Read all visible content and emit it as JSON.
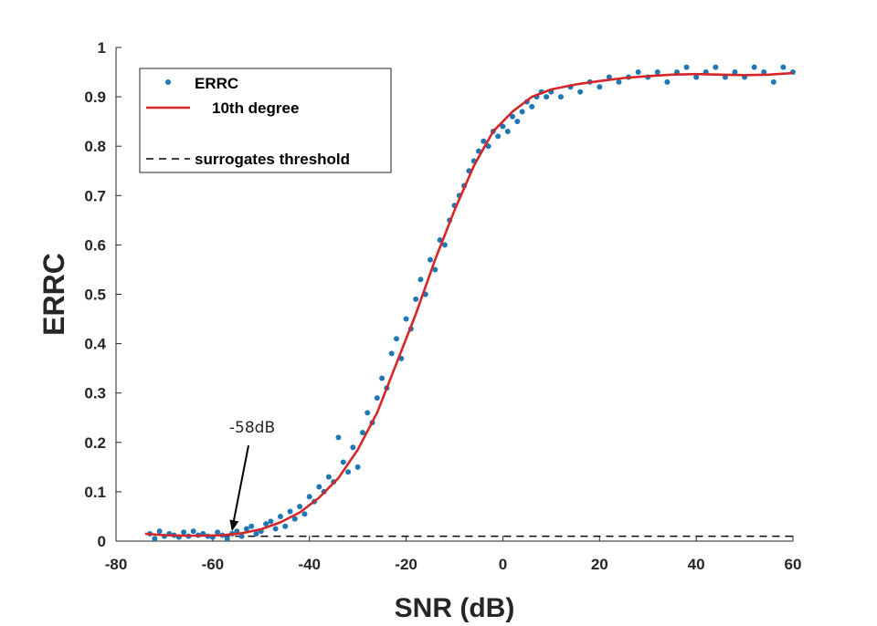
{
  "chart_data": {
    "type": "scatter",
    "title": "",
    "xlabel": "SNR (dB)",
    "ylabel": "ERRC",
    "xlim": [
      -80,
      60
    ],
    "ylim": [
      0,
      1
    ],
    "x_ticks": [
      -80,
      -60,
      -40,
      -20,
      0,
      20,
      40,
      60
    ],
    "y_ticks": [
      0,
      0.1,
      0.2,
      0.3,
      0.4,
      0.5,
      0.6,
      0.7,
      0.8,
      0.9,
      1
    ],
    "x_tick_labels": [
      "-80",
      "-60",
      "-40",
      "-20",
      "0",
      "20",
      "40",
      "60"
    ],
    "y_tick_labels": [
      "0",
      "0.1",
      "0.2",
      "0.3",
      "0.4",
      "0.5",
      "0.6",
      "0.7",
      "0.8",
      "0.9",
      "1"
    ],
    "grid": false,
    "legend_position": "top-left",
    "series": [
      {
        "name": "ERRC",
        "kind": "scatter",
        "color": "#1f77b4",
        "points": [
          [
            -73,
            0.015
          ],
          [
            -72,
            0.005
          ],
          [
            -71,
            0.02
          ],
          [
            -70,
            0.01
          ],
          [
            -69,
            0.015
          ],
          [
            -68,
            0.012
          ],
          [
            -67,
            0.008
          ],
          [
            -66,
            0.018
          ],
          [
            -65,
            0.01
          ],
          [
            -64,
            0.02
          ],
          [
            -63,
            0.012
          ],
          [
            -62,
            0.015
          ],
          [
            -61,
            0.01
          ],
          [
            -60,
            0.008
          ],
          [
            -59,
            0.018
          ],
          [
            -58,
            0.012
          ],
          [
            -57,
            0.005
          ],
          [
            -56,
            0.015
          ],
          [
            -55,
            0.02
          ],
          [
            -54,
            0.01
          ],
          [
            -53,
            0.025
          ],
          [
            -52,
            0.03
          ],
          [
            -51,
            0.015
          ],
          [
            -50,
            0.02
          ],
          [
            -49,
            0.035
          ],
          [
            -48,
            0.04
          ],
          [
            -47,
            0.025
          ],
          [
            -46,
            0.05
          ],
          [
            -45,
            0.03
          ],
          [
            -44,
            0.06
          ],
          [
            -43,
            0.045
          ],
          [
            -42,
            0.07
          ],
          [
            -41,
            0.055
          ],
          [
            -40,
            0.09
          ],
          [
            -39,
            0.08
          ],
          [
            -38,
            0.11
          ],
          [
            -37,
            0.1
          ],
          [
            -36,
            0.13
          ],
          [
            -35,
            0.12
          ],
          [
            -34,
            0.21
          ],
          [
            -33,
            0.16
          ],
          [
            -32,
            0.14
          ],
          [
            -31,
            0.19
          ],
          [
            -30,
            0.15
          ],
          [
            -29,
            0.22
          ],
          [
            -28,
            0.26
          ],
          [
            -27,
            0.24
          ],
          [
            -26,
            0.29
          ],
          [
            -25,
            0.33
          ],
          [
            -24,
            0.31
          ],
          [
            -23,
            0.38
          ],
          [
            -22,
            0.41
          ],
          [
            -21,
            0.37
          ],
          [
            -20,
            0.45
          ],
          [
            -19,
            0.43
          ],
          [
            -18,
            0.49
          ],
          [
            -17,
            0.53
          ],
          [
            -16,
            0.5
          ],
          [
            -15,
            0.57
          ],
          [
            -14,
            0.55
          ],
          [
            -13,
            0.61
          ],
          [
            -12,
            0.6
          ],
          [
            -11,
            0.65
          ],
          [
            -10,
            0.68
          ],
          [
            -9,
            0.7
          ],
          [
            -8,
            0.72
          ],
          [
            -7,
            0.75
          ],
          [
            -6,
            0.77
          ],
          [
            -5,
            0.79
          ],
          [
            -4,
            0.81
          ],
          [
            -3,
            0.8
          ],
          [
            -2,
            0.83
          ],
          [
            -1,
            0.82
          ],
          [
            0,
            0.84
          ],
          [
            1,
            0.83
          ],
          [
            2,
            0.86
          ],
          [
            3,
            0.85
          ],
          [
            4,
            0.87
          ],
          [
            5,
            0.89
          ],
          [
            6,
            0.88
          ],
          [
            7,
            0.9
          ],
          [
            8,
            0.91
          ],
          [
            9,
            0.9
          ],
          [
            10,
            0.91
          ],
          [
            12,
            0.9
          ],
          [
            14,
            0.92
          ],
          [
            16,
            0.91
          ],
          [
            18,
            0.93
          ],
          [
            20,
            0.92
          ],
          [
            22,
            0.94
          ],
          [
            24,
            0.93
          ],
          [
            26,
            0.94
          ],
          [
            28,
            0.95
          ],
          [
            30,
            0.94
          ],
          [
            32,
            0.95
          ],
          [
            34,
            0.93
          ],
          [
            36,
            0.95
          ],
          [
            38,
            0.96
          ],
          [
            40,
            0.94
          ],
          [
            42,
            0.95
          ],
          [
            44,
            0.96
          ],
          [
            46,
            0.94
          ],
          [
            48,
            0.95
          ],
          [
            50,
            0.94
          ],
          [
            52,
            0.96
          ],
          [
            54,
            0.95
          ],
          [
            56,
            0.93
          ],
          [
            58,
            0.96
          ],
          [
            60,
            0.95
          ]
        ]
      },
      {
        "name": "10th degree",
        "kind": "line",
        "color": "#d62728",
        "points": [
          [
            -74,
            0.015
          ],
          [
            -70,
            0.012
          ],
          [
            -66,
            0.011
          ],
          [
            -62,
            0.011
          ],
          [
            -58,
            0.012
          ],
          [
            -54,
            0.016
          ],
          [
            -50,
            0.024
          ],
          [
            -46,
            0.038
          ],
          [
            -42,
            0.058
          ],
          [
            -38,
            0.088
          ],
          [
            -34,
            0.128
          ],
          [
            -30,
            0.185
          ],
          [
            -26,
            0.26
          ],
          [
            -22,
            0.36
          ],
          [
            -18,
            0.46
          ],
          [
            -14,
            0.57
          ],
          [
            -10,
            0.67
          ],
          [
            -6,
            0.76
          ],
          [
            -2,
            0.83
          ],
          [
            2,
            0.87
          ],
          [
            6,
            0.9
          ],
          [
            10,
            0.915
          ],
          [
            15,
            0.925
          ],
          [
            20,
            0.932
          ],
          [
            25,
            0.938
          ],
          [
            30,
            0.942
          ],
          [
            35,
            0.945
          ],
          [
            40,
            0.946
          ],
          [
            45,
            0.945
          ],
          [
            50,
            0.944
          ],
          [
            55,
            0.945
          ],
          [
            60,
            0.948
          ]
        ]
      },
      {
        "name": "surrogates threshold",
        "kind": "dashed-line",
        "color": "#000000",
        "points": [
          [
            -58,
            0.01
          ],
          [
            60,
            0.01
          ]
        ]
      }
    ],
    "annotation": {
      "text": "-58dB",
      "x": -56,
      "y": 0.02
    }
  }
}
